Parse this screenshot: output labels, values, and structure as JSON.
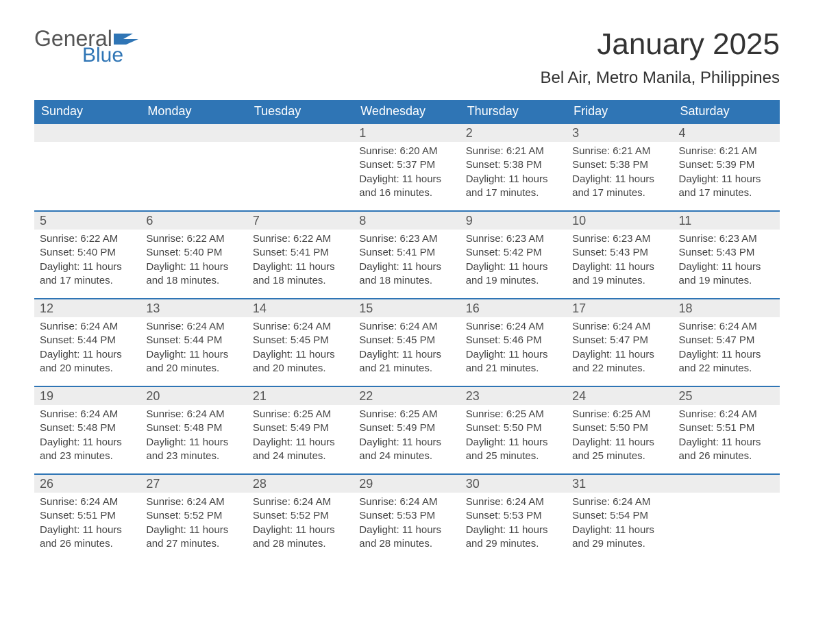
{
  "logo": {
    "line1": "General",
    "line2": "Blue",
    "flag_color": "#2f75b5"
  },
  "title": "January 2025",
  "location": "Bel Air, Metro Manila, Philippines",
  "colors": {
    "header_bg": "#2f75b5",
    "header_text": "#ffffff",
    "daynum_bg": "#ededed",
    "daynum_border": "#2f75b5",
    "body_text": "#444444",
    "page_bg": "#ffffff"
  },
  "daynames": [
    "Sunday",
    "Monday",
    "Tuesday",
    "Wednesday",
    "Thursday",
    "Friday",
    "Saturday"
  ],
  "weeks": [
    [
      {
        "day": "",
        "sunrise": "",
        "sunset": "",
        "daylight": ""
      },
      {
        "day": "",
        "sunrise": "",
        "sunset": "",
        "daylight": ""
      },
      {
        "day": "",
        "sunrise": "",
        "sunset": "",
        "daylight": ""
      },
      {
        "day": "1",
        "sunrise": "Sunrise: 6:20 AM",
        "sunset": "Sunset: 5:37 PM",
        "daylight": "Daylight: 11 hours and 16 minutes."
      },
      {
        "day": "2",
        "sunrise": "Sunrise: 6:21 AM",
        "sunset": "Sunset: 5:38 PM",
        "daylight": "Daylight: 11 hours and 17 minutes."
      },
      {
        "day": "3",
        "sunrise": "Sunrise: 6:21 AM",
        "sunset": "Sunset: 5:38 PM",
        "daylight": "Daylight: 11 hours and 17 minutes."
      },
      {
        "day": "4",
        "sunrise": "Sunrise: 6:21 AM",
        "sunset": "Sunset: 5:39 PM",
        "daylight": "Daylight: 11 hours and 17 minutes."
      }
    ],
    [
      {
        "day": "5",
        "sunrise": "Sunrise: 6:22 AM",
        "sunset": "Sunset: 5:40 PM",
        "daylight": "Daylight: 11 hours and 17 minutes."
      },
      {
        "day": "6",
        "sunrise": "Sunrise: 6:22 AM",
        "sunset": "Sunset: 5:40 PM",
        "daylight": "Daylight: 11 hours and 18 minutes."
      },
      {
        "day": "7",
        "sunrise": "Sunrise: 6:22 AM",
        "sunset": "Sunset: 5:41 PM",
        "daylight": "Daylight: 11 hours and 18 minutes."
      },
      {
        "day": "8",
        "sunrise": "Sunrise: 6:23 AM",
        "sunset": "Sunset: 5:41 PM",
        "daylight": "Daylight: 11 hours and 18 minutes."
      },
      {
        "day": "9",
        "sunrise": "Sunrise: 6:23 AM",
        "sunset": "Sunset: 5:42 PM",
        "daylight": "Daylight: 11 hours and 19 minutes."
      },
      {
        "day": "10",
        "sunrise": "Sunrise: 6:23 AM",
        "sunset": "Sunset: 5:43 PM",
        "daylight": "Daylight: 11 hours and 19 minutes."
      },
      {
        "day": "11",
        "sunrise": "Sunrise: 6:23 AM",
        "sunset": "Sunset: 5:43 PM",
        "daylight": "Daylight: 11 hours and 19 minutes."
      }
    ],
    [
      {
        "day": "12",
        "sunrise": "Sunrise: 6:24 AM",
        "sunset": "Sunset: 5:44 PM",
        "daylight": "Daylight: 11 hours and 20 minutes."
      },
      {
        "day": "13",
        "sunrise": "Sunrise: 6:24 AM",
        "sunset": "Sunset: 5:44 PM",
        "daylight": "Daylight: 11 hours and 20 minutes."
      },
      {
        "day": "14",
        "sunrise": "Sunrise: 6:24 AM",
        "sunset": "Sunset: 5:45 PM",
        "daylight": "Daylight: 11 hours and 20 minutes."
      },
      {
        "day": "15",
        "sunrise": "Sunrise: 6:24 AM",
        "sunset": "Sunset: 5:45 PM",
        "daylight": "Daylight: 11 hours and 21 minutes."
      },
      {
        "day": "16",
        "sunrise": "Sunrise: 6:24 AM",
        "sunset": "Sunset: 5:46 PM",
        "daylight": "Daylight: 11 hours and 21 minutes."
      },
      {
        "day": "17",
        "sunrise": "Sunrise: 6:24 AM",
        "sunset": "Sunset: 5:47 PM",
        "daylight": "Daylight: 11 hours and 22 minutes."
      },
      {
        "day": "18",
        "sunrise": "Sunrise: 6:24 AM",
        "sunset": "Sunset: 5:47 PM",
        "daylight": "Daylight: 11 hours and 22 minutes."
      }
    ],
    [
      {
        "day": "19",
        "sunrise": "Sunrise: 6:24 AM",
        "sunset": "Sunset: 5:48 PM",
        "daylight": "Daylight: 11 hours and 23 minutes."
      },
      {
        "day": "20",
        "sunrise": "Sunrise: 6:24 AM",
        "sunset": "Sunset: 5:48 PM",
        "daylight": "Daylight: 11 hours and 23 minutes."
      },
      {
        "day": "21",
        "sunrise": "Sunrise: 6:25 AM",
        "sunset": "Sunset: 5:49 PM",
        "daylight": "Daylight: 11 hours and 24 minutes."
      },
      {
        "day": "22",
        "sunrise": "Sunrise: 6:25 AM",
        "sunset": "Sunset: 5:49 PM",
        "daylight": "Daylight: 11 hours and 24 minutes."
      },
      {
        "day": "23",
        "sunrise": "Sunrise: 6:25 AM",
        "sunset": "Sunset: 5:50 PM",
        "daylight": "Daylight: 11 hours and 25 minutes."
      },
      {
        "day": "24",
        "sunrise": "Sunrise: 6:25 AM",
        "sunset": "Sunset: 5:50 PM",
        "daylight": "Daylight: 11 hours and 25 minutes."
      },
      {
        "day": "25",
        "sunrise": "Sunrise: 6:24 AM",
        "sunset": "Sunset: 5:51 PM",
        "daylight": "Daylight: 11 hours and 26 minutes."
      }
    ],
    [
      {
        "day": "26",
        "sunrise": "Sunrise: 6:24 AM",
        "sunset": "Sunset: 5:51 PM",
        "daylight": "Daylight: 11 hours and 26 minutes."
      },
      {
        "day": "27",
        "sunrise": "Sunrise: 6:24 AM",
        "sunset": "Sunset: 5:52 PM",
        "daylight": "Daylight: 11 hours and 27 minutes."
      },
      {
        "day": "28",
        "sunrise": "Sunrise: 6:24 AM",
        "sunset": "Sunset: 5:52 PM",
        "daylight": "Daylight: 11 hours and 28 minutes."
      },
      {
        "day": "29",
        "sunrise": "Sunrise: 6:24 AM",
        "sunset": "Sunset: 5:53 PM",
        "daylight": "Daylight: 11 hours and 28 minutes."
      },
      {
        "day": "30",
        "sunrise": "Sunrise: 6:24 AM",
        "sunset": "Sunset: 5:53 PM",
        "daylight": "Daylight: 11 hours and 29 minutes."
      },
      {
        "day": "31",
        "sunrise": "Sunrise: 6:24 AM",
        "sunset": "Sunset: 5:54 PM",
        "daylight": "Daylight: 11 hours and 29 minutes."
      },
      {
        "day": "",
        "sunrise": "",
        "sunset": "",
        "daylight": ""
      }
    ]
  ]
}
